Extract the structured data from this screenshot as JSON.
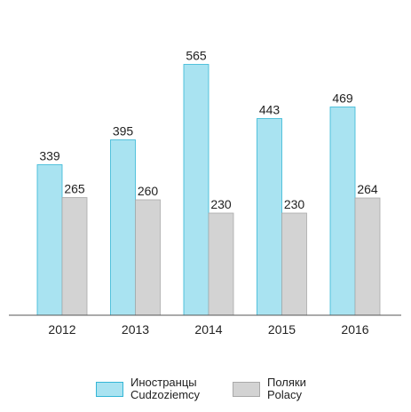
{
  "chart_data": {
    "type": "bar",
    "categories": [
      "2012",
      "2013",
      "2014",
      "2015",
      "2016"
    ],
    "series": [
      {
        "name": "Иностранцы Cudzoziemcy",
        "name_line1": "Иностранцы",
        "name_line2": "Cudzoziemcy",
        "color": "#a9e3f1",
        "border": "#34b6d6",
        "values": [
          339,
          395,
          565,
          443,
          469
        ]
      },
      {
        "name": "Поляки Polacy",
        "name_line1": "Поляки",
        "name_line2": "Polacy",
        "color": "#d3d3d3",
        "border": "#a9a9a9",
        "values": [
          265,
          260,
          230,
          230,
          264
        ]
      }
    ],
    "ylim": [
      0,
      600
    ],
    "grid": false,
    "legend_position": "bottom",
    "title": "",
    "xlabel": "",
    "ylabel": ""
  }
}
